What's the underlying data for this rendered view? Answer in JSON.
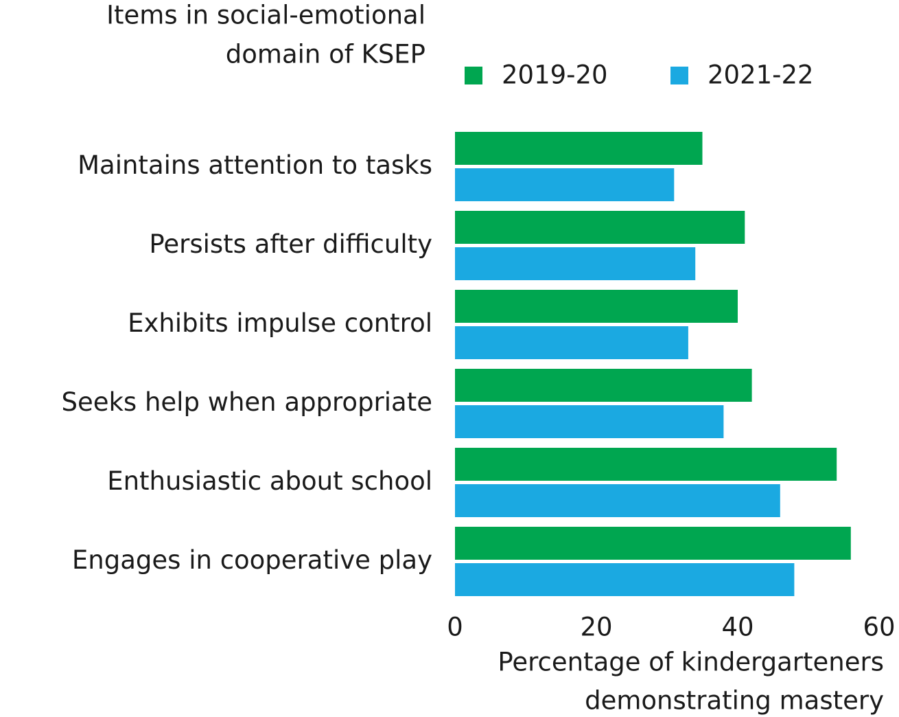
{
  "chart_data": {
    "type": "bar",
    "orientation": "horizontal",
    "y_label": [
      "Items in social-emotional",
      "domain of KSEP"
    ],
    "x_label": [
      "Percentage of kindergarteners",
      "demonstrating mastery"
    ],
    "categories": [
      "Maintains attention to tasks",
      "Persists after difficulty",
      "Exhibits impulse control",
      "Seeks help when appropriate",
      "Enthusiastic about school",
      "Engages in cooperative play"
    ],
    "series": [
      {
        "name": "2019-20",
        "color": "#00a650",
        "values": [
          35,
          41,
          40,
          42,
          54,
          56
        ]
      },
      {
        "name": "2021-22",
        "color": "#1ba9e1",
        "values": [
          31,
          34,
          33,
          38,
          46,
          48
        ]
      }
    ],
    "xlim": [
      0,
      60
    ],
    "xticks": [
      0,
      20,
      40,
      60
    ],
    "grid": false,
    "legend": "top"
  }
}
